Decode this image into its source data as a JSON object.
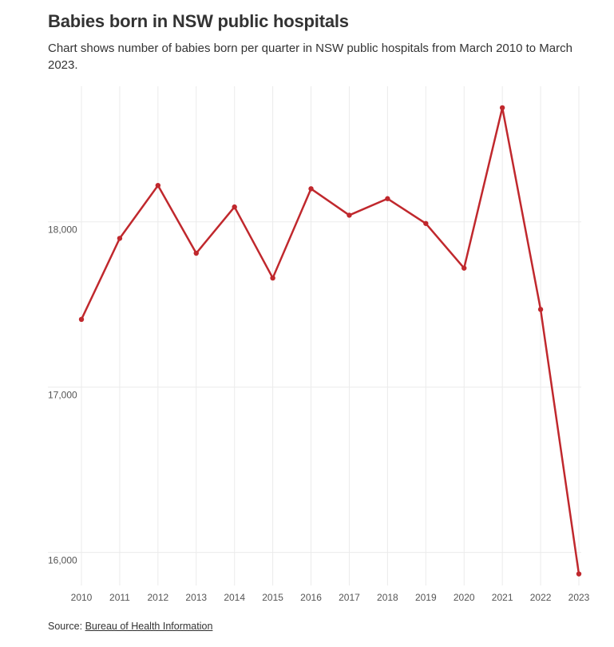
{
  "header": {
    "title": "Babies born in NSW public hospitals",
    "subtitle": "Chart shows number of babies born per quarter in NSW public hospitals from March 2010 to March 2023."
  },
  "footer": {
    "source_prefix": "Source:",
    "source_link": "Bureau of Health Information"
  },
  "colors": {
    "line": "#c0282d",
    "grid": "#ebebeb",
    "text": "#333333",
    "tick_text": "#555555"
  },
  "chart_data": {
    "type": "line",
    "title": "Babies born in NSW public hospitals",
    "subtitle": "Chart shows number of babies born per quarter in NSW public hospitals from March 2010 to March 2023.",
    "xlabel": "",
    "ylabel": "",
    "x": [
      "2010",
      "2011",
      "2012",
      "2013",
      "2014",
      "2015",
      "2016",
      "2017",
      "2018",
      "2019",
      "2020",
      "2021",
      "2022",
      "2023"
    ],
    "series": [
      {
        "values": [
          17410,
          17900,
          18220,
          17810,
          18090,
          17660,
          18200,
          18040,
          18140,
          17990,
          17720,
          18690,
          17470,
          15870
        ]
      }
    ],
    "y_ticks": [
      16000,
      17000,
      18000
    ],
    "y_tick_labels": [
      "16,000",
      "17,000",
      "18,000"
    ],
    "ylim": [
      15800,
      18820
    ],
    "grid": true,
    "legend": "none"
  }
}
